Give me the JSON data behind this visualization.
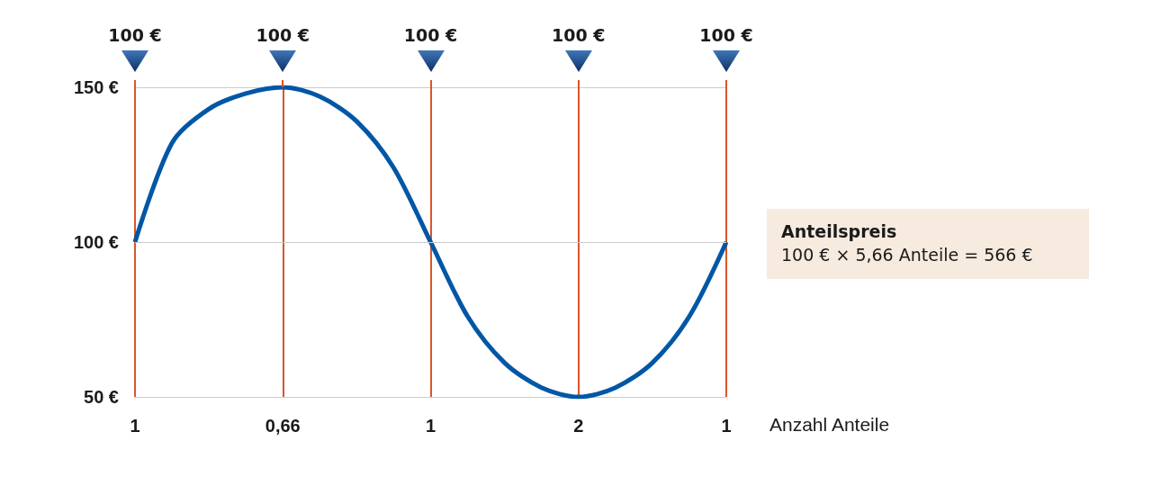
{
  "chart_data": {
    "type": "line",
    "xlabel": "Anzahl Anteile",
    "categories": [
      "1",
      null,
      null,
      null,
      "0,66",
      null,
      null,
      null,
      "1",
      null,
      null,
      null,
      "2",
      null,
      null,
      null,
      "1"
    ],
    "series": [
      {
        "color": "#0057a5",
        "values": [
          100,
          132,
          143,
          148,
          150,
          147,
          139,
          124,
          100,
          76,
          61,
          53,
          50,
          53,
          61,
          76,
          100
        ]
      }
    ],
    "ylim": [
      50,
      150
    ],
    "yticks": [
      {
        "value": 50,
        "label": "50 €"
      },
      {
        "value": 100,
        "label": "100 €"
      },
      {
        "value": 150,
        "label": "150 €"
      }
    ],
    "ref_lines": [
      {
        "axis": "y",
        "value": 100,
        "color": "#cccccc"
      }
    ],
    "grid": true,
    "marker": "none",
    "line_style": "solid",
    "annotations": [
      "100 €",
      "100 €",
      "100 €",
      "100 €",
      "100 €",
      "Anteilspreis",
      "100 € × 5,66 Anteile = 566 €"
    ]
  }
}
